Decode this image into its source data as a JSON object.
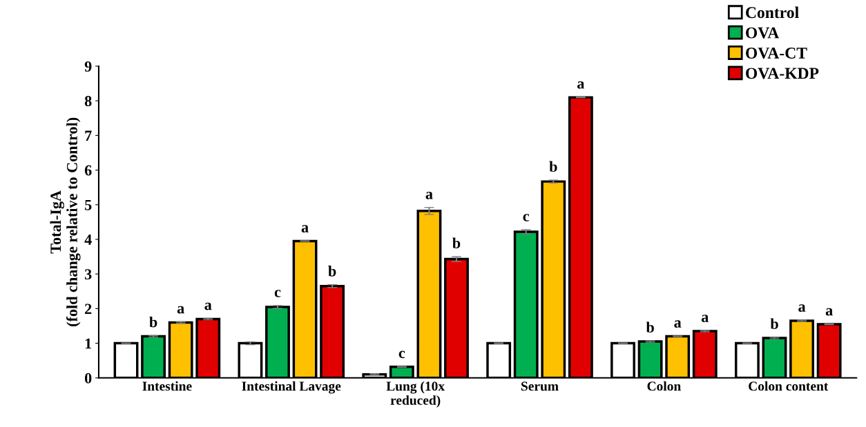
{
  "chart_data": {
    "type": "bar",
    "ylabel": "Total-IgA\n(fold change relative to Control)",
    "categories": [
      "Intestine",
      "Intestinal Lavage",
      "Lung (10x\nreduced)",
      "Serum",
      "Colon",
      "Colon content"
    ],
    "series": [
      {
        "name": "Control",
        "color": "#ffffff",
        "values": [
          1.0,
          1.0,
          0.1,
          1.0,
          1.0,
          1.0
        ],
        "errors": [
          0.01,
          0.04,
          0.02,
          0.01,
          0.01,
          0.01
        ]
      },
      {
        "name": "OVA",
        "color": "#00b050",
        "values": [
          1.2,
          2.05,
          0.32,
          4.22,
          1.05,
          1.15
        ],
        "errors": [
          0.02,
          0.04,
          0.01,
          0.06,
          0.02,
          0.02
        ],
        "value_labels": [
          "b",
          "c",
          "c",
          "c",
          "b",
          "b"
        ]
      },
      {
        "name": "OVA-CT",
        "color": "#ffc000",
        "values": [
          1.6,
          3.95,
          4.82,
          5.67,
          1.2,
          1.65
        ],
        "errors": [
          0.02,
          0.01,
          0.1,
          0.04,
          0.01,
          0.02
        ],
        "value_labels": [
          "a",
          "a",
          "a",
          "b",
          "a",
          "a"
        ]
      },
      {
        "name": "OVA-KDP",
        "color": "#e00000",
        "values": [
          1.7,
          2.65,
          3.43,
          8.1,
          1.35,
          1.55
        ],
        "errors": [
          0.02,
          0.04,
          0.07,
          0.01,
          0.02,
          0.01
        ],
        "value_labels": [
          "a",
          "b",
          "b",
          "a",
          "a",
          "a"
        ]
      }
    ],
    "ylim": [
      0,
      9
    ],
    "yticks": [
      0,
      1,
      2,
      3,
      4,
      5,
      6,
      7,
      8,
      9
    ],
    "grid": false,
    "legend": "top right"
  }
}
